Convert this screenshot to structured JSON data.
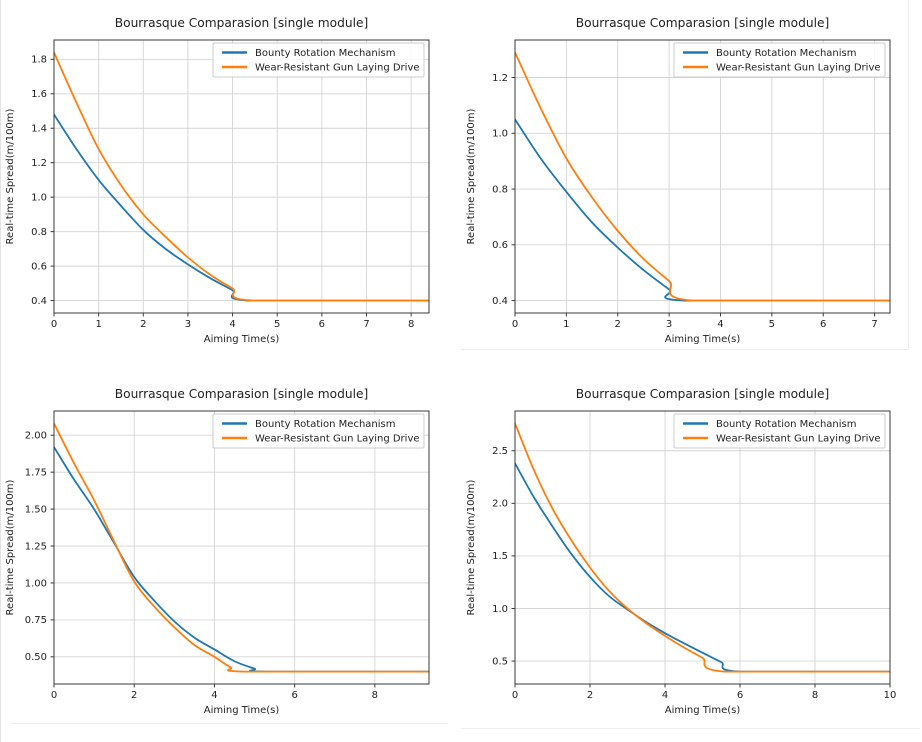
{
  "page": {
    "background": "#ffffff",
    "left_border_color": "#e3e3e3",
    "divider_color": "#ededed"
  },
  "palette": {
    "blue": "#1f77b4",
    "orange": "#ff7f0e",
    "grid": "#d4d4d4",
    "axis": "#3a3a3a",
    "text": "#1f1f1f",
    "legend_border": "#cccccc",
    "legend_bg": "#ffffff"
  },
  "chart_data": [
    {
      "type": "line",
      "position": "top-left",
      "title": "Bourrasque Comparasion [single module]",
      "xlabel": "Aiming Time(s)",
      "ylabel": "Real-time Spread(m/100m)",
      "xlim": [
        0,
        8.4
      ],
      "ylim": [
        0.328,
        1.912
      ],
      "xticks": [
        0,
        1,
        2,
        3,
        4,
        5,
        6,
        7,
        8
      ],
      "yticks": [
        0.4,
        0.6,
        0.8,
        1.0,
        1.2,
        1.4,
        1.6,
        1.8
      ],
      "ytick_decimals": 1,
      "grid": true,
      "y_floor": 0.4,
      "legend_position": "upper right",
      "series": [
        {
          "name": "Bounty Rotation Mechanism",
          "color": "blue",
          "points": [
            [
              0,
              1.48
            ],
            [
              0.5,
              1.28
            ],
            [
              1,
              1.1
            ],
            [
              1.5,
              0.95
            ],
            [
              2,
              0.81
            ],
            [
              2.5,
              0.7
            ],
            [
              3,
              0.61
            ],
            [
              3.5,
              0.53
            ],
            [
              4,
              0.46
            ],
            [
              4.4,
              0.4
            ],
            [
              8.4,
              0.4
            ]
          ]
        },
        {
          "name": "Wear-Resistant Gun Laying Drive",
          "color": "orange",
          "points": [
            [
              0,
              1.84
            ],
            [
              0.5,
              1.55
            ],
            [
              1,
              1.28
            ],
            [
              1.5,
              1.07
            ],
            [
              2,
              0.9
            ],
            [
              2.5,
              0.77
            ],
            [
              3,
              0.65
            ],
            [
              3.5,
              0.55
            ],
            [
              4,
              0.47
            ],
            [
              4.45,
              0.4
            ],
            [
              8.4,
              0.4
            ]
          ]
        }
      ]
    },
    {
      "type": "line",
      "position": "top-right",
      "title": "Bourrasque Comparasion [single module]",
      "xlabel": "Aiming Time(s)",
      "ylabel": "Real-time Spread(m/100m)",
      "xlim": [
        0,
        7.3
      ],
      "ylim": [
        0.3555,
        1.3345
      ],
      "xticks": [
        0,
        1,
        2,
        3,
        4,
        5,
        6,
        7
      ],
      "yticks": [
        0.4,
        0.6,
        0.8,
        1.0,
        1.2
      ],
      "ytick_decimals": 1,
      "grid": true,
      "y_floor": 0.4,
      "legend_position": "upper right",
      "series": [
        {
          "name": "Bounty Rotation Mechanism",
          "color": "blue",
          "points": [
            [
              0,
              1.05
            ],
            [
              0.5,
              0.91
            ],
            [
              1,
              0.79
            ],
            [
              1.5,
              0.68
            ],
            [
              2,
              0.59
            ],
            [
              2.5,
              0.51
            ],
            [
              3,
              0.44
            ],
            [
              3.3,
              0.4
            ],
            [
              7.3,
              0.4
            ]
          ]
        },
        {
          "name": "Wear-Resistant Gun Laying Drive",
          "color": "orange",
          "points": [
            [
              0,
              1.29
            ],
            [
              0.5,
              1.09
            ],
            [
              1,
              0.91
            ],
            [
              1.5,
              0.77
            ],
            [
              2,
              0.65
            ],
            [
              2.5,
              0.55
            ],
            [
              3,
              0.47
            ],
            [
              3.45,
              0.4
            ],
            [
              7.3,
              0.4
            ]
          ]
        }
      ]
    },
    {
      "type": "line",
      "position": "bottom-left",
      "title": "Bourrasque Comparasion [single module]",
      "xlabel": "Aiming Time(s)",
      "ylabel": "Real-time Spread(m/100m)",
      "xlim": [
        0,
        9.35
      ],
      "ylim": [
        0.316,
        2.164
      ],
      "xticks": [
        0,
        2,
        4,
        6,
        8
      ],
      "yticks": [
        0.5,
        0.75,
        1.0,
        1.25,
        1.5,
        1.75,
        2.0
      ],
      "ytick_decimals": 2,
      "grid": true,
      "y_floor": 0.4,
      "legend_position": "upper right",
      "series": [
        {
          "name": "Bounty Rotation Mechanism",
          "color": "blue",
          "points": [
            [
              0,
              1.92
            ],
            [
              0.5,
              1.7
            ],
            [
              1,
              1.5
            ],
            [
              1.5,
              1.27
            ],
            [
              2,
              1.04
            ],
            [
              2.5,
              0.88
            ],
            [
              3,
              0.74
            ],
            [
              3.5,
              0.63
            ],
            [
              4,
              0.55
            ],
            [
              4.5,
              0.47
            ],
            [
              5,
              0.42
            ],
            [
              5.25,
              0.4
            ],
            [
              9.35,
              0.4
            ]
          ]
        },
        {
          "name": "Wear-Resistant Gun Laying Drive",
          "color": "orange",
          "points": [
            [
              0,
              2.08
            ],
            [
              0.5,
              1.81
            ],
            [
              1,
              1.56
            ],
            [
              1.5,
              1.28
            ],
            [
              2,
              1.01
            ],
            [
              2.5,
              0.84
            ],
            [
              3,
              0.7
            ],
            [
              3.5,
              0.58
            ],
            [
              4,
              0.5
            ],
            [
              4.4,
              0.43
            ],
            [
              4.8,
              0.4
            ],
            [
              9.35,
              0.4
            ]
          ]
        }
      ]
    },
    {
      "type": "line",
      "position": "bottom-right",
      "title": "Bourrasque Comparasion [single module]",
      "xlabel": "Aiming Time(s)",
      "ylabel": "Real-time Spread(m/100m)",
      "xlim": [
        0,
        10
      ],
      "ylim": [
        0.282,
        2.878
      ],
      "xticks": [
        0,
        2,
        4,
        6,
        8,
        10
      ],
      "yticks": [
        0.5,
        1.0,
        1.5,
        2.0,
        2.5
      ],
      "ytick_decimals": 1,
      "grid": true,
      "y_floor": 0.4,
      "legend_position": "upper right",
      "series": [
        {
          "name": "Bounty Rotation Mechanism",
          "color": "blue",
          "points": [
            [
              0,
              2.38
            ],
            [
              0.5,
              2.06
            ],
            [
              1,
              1.78
            ],
            [
              1.5,
              1.52
            ],
            [
              2,
              1.3
            ],
            [
              2.5,
              1.12
            ],
            [
              3,
              0.99
            ],
            [
              3.5,
              0.87
            ],
            [
              4,
              0.765
            ],
            [
              4.5,
              0.67
            ],
            [
              5,
              0.58
            ],
            [
              5.5,
              0.49
            ],
            [
              6,
              0.4
            ],
            [
              10,
              0.4
            ]
          ]
        },
        {
          "name": "Wear-Resistant Gun Laying Drive",
          "color": "orange",
          "points": [
            [
              0,
              2.76
            ],
            [
              0.5,
              2.32
            ],
            [
              1,
              1.95
            ],
            [
              1.5,
              1.65
            ],
            [
              2,
              1.39
            ],
            [
              2.5,
              1.17
            ],
            [
              3,
              1.0
            ],
            [
              3.5,
              0.86
            ],
            [
              4,
              0.74
            ],
            [
              4.5,
              0.63
            ],
            [
              5,
              0.53
            ],
            [
              5.6,
              0.4
            ],
            [
              10,
              0.4
            ]
          ]
        }
      ]
    }
  ]
}
